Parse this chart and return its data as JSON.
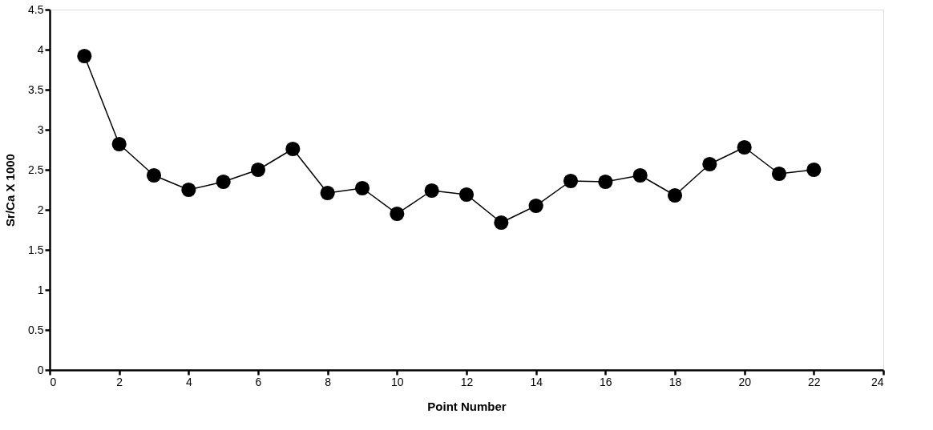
{
  "chart_data": {
    "type": "line",
    "xlabel": "Point Number",
    "ylabel": "Sr/Ca X 1000",
    "x": [
      1,
      2,
      3,
      4,
      5,
      6,
      7,
      8,
      9,
      10,
      11,
      12,
      13,
      14,
      15,
      16,
      17,
      18,
      19,
      20,
      21,
      22
    ],
    "series": [
      {
        "color": "#000000",
        "values": [
          3.92,
          2.82,
          2.43,
          2.25,
          2.35,
          2.5,
          2.76,
          2.21,
          2.27,
          1.95,
          2.24,
          2.19,
          1.84,
          2.05,
          2.36,
          2.35,
          2.43,
          2.18,
          2.57,
          2.78,
          2.45,
          2.5
        ]
      }
    ],
    "xlim": [
      0,
      24
    ],
    "xticks": [
      0,
      2,
      4,
      6,
      8,
      10,
      12,
      14,
      16,
      18,
      20,
      22,
      24
    ],
    "ylim": [
      0,
      4.5
    ],
    "yticks": [
      0,
      0.5,
      1,
      1.5,
      2,
      2.5,
      3,
      3.5,
      4,
      4.5
    ],
    "marker": "circle",
    "line_style": "solid"
  }
}
